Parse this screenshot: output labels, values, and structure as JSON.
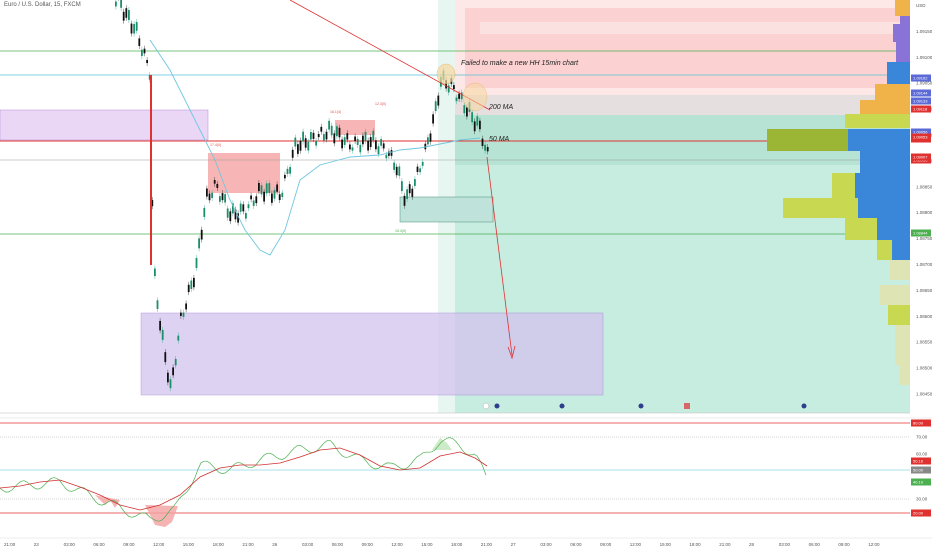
{
  "symbol": "Euro / U.S. Dollar, 15, FXCM",
  "annotations": {
    "failed_hh": "Failed to make a new HH 15min chart",
    "ma200": "200 MA",
    "ma50": "50 MA"
  },
  "price_axis": {
    "ticks": [
      "USD",
      "1.09150",
      "1.09100",
      "1.09050",
      "1.09000",
      "1.08950",
      "1.08900",
      "1.08850",
      "1.08800",
      "1.08750",
      "1.08700",
      "1.08650",
      "1.08600",
      "1.08550",
      "1.08500",
      "1.08450"
    ]
  },
  "price_tags": [
    {
      "label": "1.09055",
      "color": "#e03131"
    },
    {
      "label": "1.08930",
      "color": "#e03131"
    },
    {
      "label": "1.09162",
      "color": "#5b6ad6"
    },
    {
      "label": "1.09144",
      "color": "#5b6ad6"
    },
    {
      "label": "1.09133",
      "color": "#5b6ad6"
    },
    {
      "label": "1.09118",
      "color": "#e03131"
    },
    {
      "label": "1.09056",
      "color": "#5b6ad6"
    },
    {
      "label": "1.09053",
      "color": "#e03131"
    },
    {
      "label": "1.09007",
      "color": "#e03131"
    },
    {
      "label": "1.08844",
      "color": "#4caf50"
    }
  ],
  "time_axis": [
    "21:00",
    "23",
    "03:00",
    "06:00",
    "09:00",
    "12:00",
    "15:00",
    "18:00",
    "21:00",
    "26",
    "03:00",
    "06:00",
    "09:00",
    "12:00",
    "15:00",
    "18:00",
    "21:00",
    "27",
    "03:00",
    "06:00",
    "09:00",
    "12:00",
    "15:00",
    "18:00",
    "21:00",
    "28",
    "03:00",
    "06:00",
    "09:00",
    "12:00"
  ],
  "rsi_axis": {
    "ticks": [
      "80.00",
      "70.00",
      "60.00",
      "50.00",
      "40.00",
      "30.00",
      "20.00"
    ],
    "tags": [
      {
        "label": "80.00",
        "color": "#e03131"
      },
      {
        "label": "50.16",
        "color": "#e03131"
      },
      {
        "label": "50.00",
        "color": "#888888"
      },
      {
        "label": "40.19",
        "color": "#4caf50"
      },
      {
        "label": "20.00",
        "color": "#e03131"
      }
    ]
  },
  "small_labels": {
    "a": "17.4(0)",
    "b": "16.1(4)",
    "c": "12.3(0)",
    "d": "15.4(0)"
  }
}
